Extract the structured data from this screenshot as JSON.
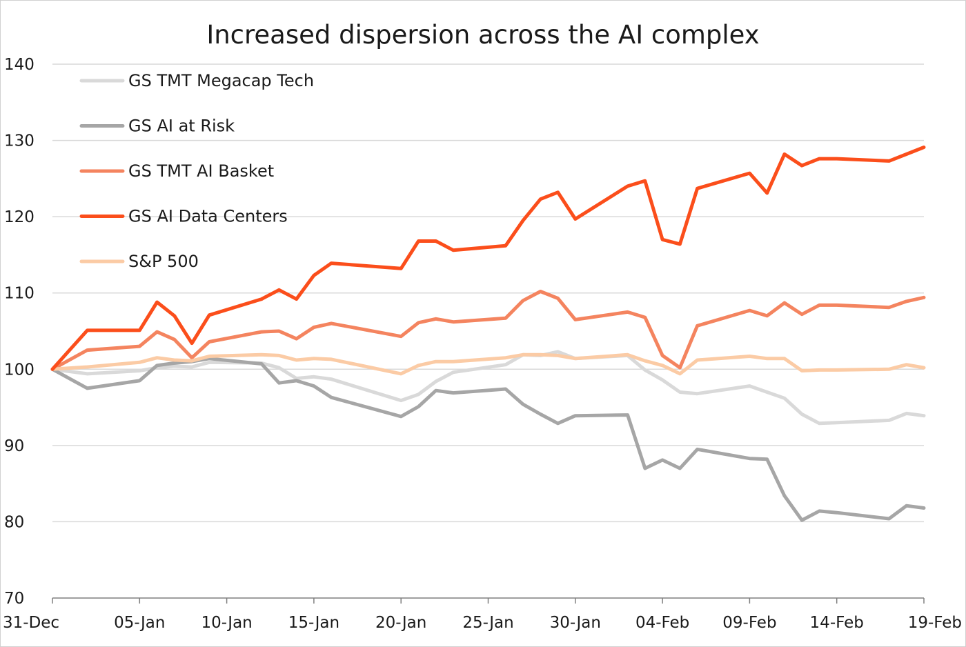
{
  "chart_data": {
    "type": "line",
    "title": "Increased dispersion across the AI complex",
    "xlabel": "",
    "ylabel": "",
    "ylim": [
      70,
      140
    ],
    "yticks": [
      70,
      80,
      90,
      100,
      110,
      120,
      130,
      140
    ],
    "xlim": [
      0,
      50
    ],
    "xticks": [
      {
        "label": "31-Dec",
        "x": 0
      },
      {
        "label": "05-Jan",
        "x": 5
      },
      {
        "label": "10-Jan",
        "x": 10
      },
      {
        "label": "15-Jan",
        "x": 15
      },
      {
        "label": "20-Jan",
        "x": 20
      },
      {
        "label": "25-Jan",
        "x": 25
      },
      {
        "label": "30-Jan",
        "x": 30
      },
      {
        "label": "04-Feb",
        "x": 35
      },
      {
        "label": "09-Feb",
        "x": 40
      },
      {
        "label": "14-Feb",
        "x": 45
      },
      {
        "label": "19-Feb",
        "x": 50
      }
    ],
    "grid": "horizontal",
    "legend": "top-left",
    "x": [
      0,
      2,
      5,
      6,
      7,
      8,
      9,
      12,
      13,
      14,
      15,
      16,
      20,
      21,
      22,
      23,
      26,
      27,
      28,
      29,
      30,
      33,
      34,
      35,
      36,
      37,
      40,
      41,
      42,
      43,
      44,
      45,
      48,
      49,
      50
    ],
    "series": [
      {
        "name": "GS TMT Megacap Tech",
        "color": "#d9d9d9",
        "values": [
          100,
          99.4,
          99.8,
          100.2,
          100.4,
          100.3,
          100.9,
          100.8,
          100.2,
          98.8,
          99.0,
          98.7,
          95.9,
          96.7,
          98.4,
          99.6,
          100.6,
          101.9,
          101.8,
          102.3,
          101.4,
          101.8,
          99.9,
          98.6,
          97.0,
          96.8,
          97.8,
          97.0,
          96.2,
          94.1,
          92.9,
          93.0,
          93.3,
          94.2,
          93.9
        ]
      },
      {
        "name": "GS AI at Risk",
        "color": "#a6a6a6",
        "values": [
          100,
          97.5,
          98.5,
          100.5,
          100.8,
          101.0,
          101.4,
          100.7,
          98.2,
          98.5,
          97.8,
          96.3,
          93.8,
          95.1,
          97.2,
          96.9,
          97.4,
          95.4,
          94.1,
          92.9,
          93.9,
          94.0,
          87.0,
          88.1,
          87.0,
          89.5,
          88.3,
          88.2,
          83.4,
          80.2,
          81.4,
          81.2,
          80.4,
          82.1,
          81.8
        ]
      },
      {
        "name": "GS TMT AI Basket",
        "color": "#f4845f",
        "values": [
          100,
          102.5,
          103.0,
          104.9,
          103.9,
          101.5,
          103.6,
          104.9,
          105.0,
          104.0,
          105.5,
          106.0,
          104.3,
          106.1,
          106.6,
          106.2,
          106.7,
          109.0,
          110.2,
          109.3,
          106.5,
          107.5,
          106.8,
          101.8,
          100.2,
          105.7,
          107.7,
          107.0,
          108.7,
          107.2,
          108.4,
          108.4,
          108.1,
          108.9,
          109.4
        ]
      },
      {
        "name": "GS AI Data Centers",
        "color": "#fb4e1b",
        "values": [
          100,
          105.1,
          105.1,
          108.8,
          107.0,
          103.4,
          107.1,
          109.2,
          110.4,
          109.2,
          112.3,
          113.9,
          113.2,
          116.8,
          116.8,
          115.6,
          116.2,
          119.5,
          122.3,
          123.2,
          119.7,
          124.0,
          124.7,
          117.0,
          116.4,
          123.7,
          125.7,
          123.1,
          128.2,
          126.7,
          127.6,
          127.6,
          127.3,
          128.2,
          129.1
        ]
      },
      {
        "name": "S&P 500",
        "color": "#fbcba5",
        "values": [
          100,
          100.3,
          100.9,
          101.5,
          101.2,
          101.1,
          101.7,
          101.9,
          101.8,
          101.2,
          101.4,
          101.3,
          99.4,
          100.5,
          101.0,
          101.0,
          101.5,
          101.9,
          101.9,
          101.8,
          101.4,
          101.9,
          101.1,
          100.5,
          99.4,
          101.2,
          101.7,
          101.4,
          101.4,
          99.8,
          99.9,
          99.9,
          100.0,
          100.6,
          100.2
        ]
      }
    ]
  }
}
